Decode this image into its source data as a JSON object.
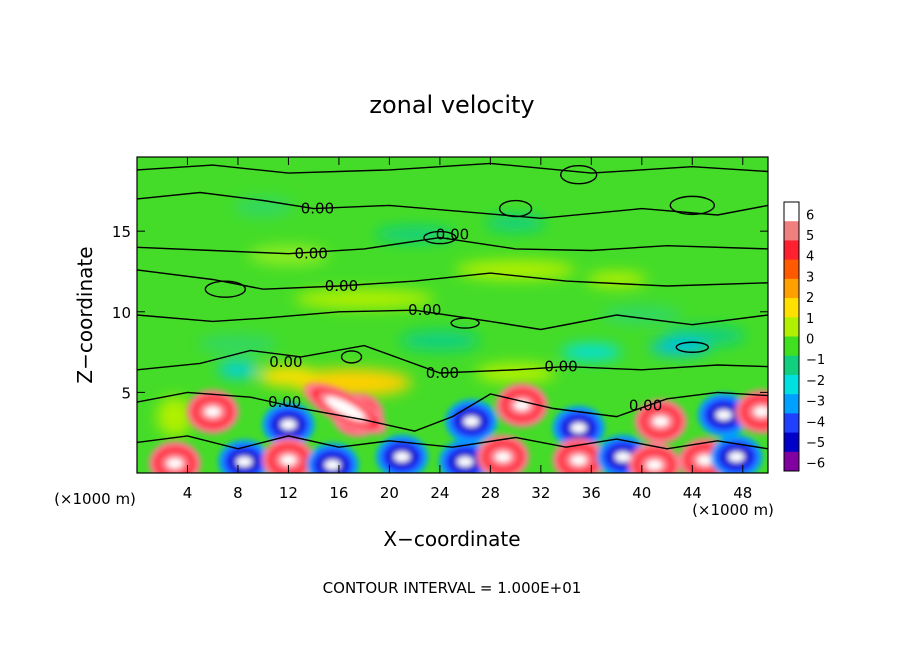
{
  "chart_data": {
    "type": "heatmap",
    "title": "zonal velocity",
    "xlabel": "X−coordinate",
    "ylabel": "Z−coordinate",
    "x_unit_left": "(×1000 m)",
    "x_unit_right": "(×1000 m)",
    "footer": "CONTOUR INTERVAL = 1.000E+01",
    "xlim": [
      0,
      50
    ],
    "ylim": [
      0,
      19.6
    ],
    "x_ticks": [
      4,
      8,
      12,
      16,
      20,
      24,
      28,
      32,
      36,
      40,
      44,
      48
    ],
    "x_tick_labels": [
      "4",
      "8",
      "12",
      "16",
      "20",
      "24",
      "28",
      "32",
      "36",
      "40",
      "44",
      "48"
    ],
    "y_ticks": [
      5,
      10,
      15
    ],
    "y_tick_labels": [
      "5",
      "10",
      "15"
    ],
    "colorbar": {
      "min": -6,
      "max": 6,
      "ticks": [
        6,
        5,
        4,
        3,
        2,
        1,
        0,
        -1,
        -2,
        -3,
        -4,
        -5,
        -6
      ],
      "tick_labels": [
        "6",
        "5",
        "4",
        "3",
        "2",
        "1",
        "0",
        "−1",
        "−2",
        "−3",
        "−4",
        "−5",
        "−6"
      ],
      "colors": [
        "#ffffff",
        "#f08080",
        "#ff2030",
        "#ff5a00",
        "#ffa000",
        "#ffe000",
        "#b0f000",
        "#40e020",
        "#10d080",
        "#00e0e0",
        "#00a0ff",
        "#2040ff",
        "#0000c8",
        "#8000a0"
      ]
    },
    "contour_labels": [
      {
        "text": "0.00",
        "x": 14.3,
        "y": 16.4
      },
      {
        "text": "0.00",
        "x": 25.0,
        "y": 14.8
      },
      {
        "text": "0.00",
        "x": 13.8,
        "y": 13.6
      },
      {
        "text": "0.00",
        "x": 16.2,
        "y": 11.6
      },
      {
        "text": "0.00",
        "x": 22.8,
        "y": 10.1
      },
      {
        "text": "0.00",
        "x": 11.8,
        "y": 6.9
      },
      {
        "text": "0.00",
        "x": 24.2,
        "y": 6.2
      },
      {
        "text": "0.00",
        "x": 33.6,
        "y": 6.6
      },
      {
        "text": "0.00",
        "x": 11.7,
        "y": 4.4
      },
      {
        "text": "0.00",
        "x": 40.3,
        "y": 4.2
      }
    ]
  }
}
